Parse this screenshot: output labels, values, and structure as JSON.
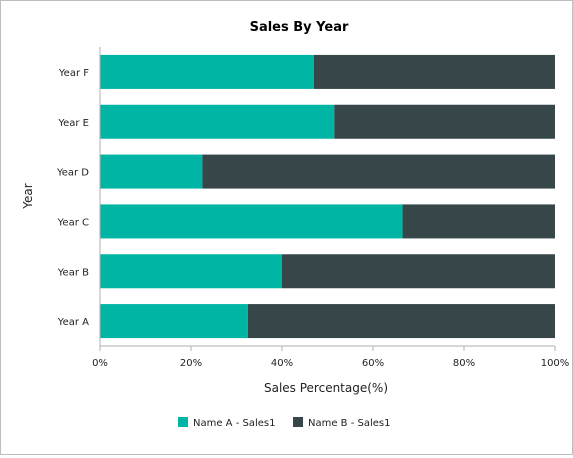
{
  "chart_data": {
    "type": "bar",
    "orientation": "horizontal",
    "stacked": "percent",
    "title": "Sales By Year",
    "xlabel": "Sales Percentage(%)",
    "ylabel": "Year",
    "categories": [
      "Year A",
      "Year B",
      "Year C",
      "Year D",
      "Year E",
      "Year F"
    ],
    "series": [
      {
        "name": "Name A - Sales1",
        "color": "#00b5a4",
        "values": [
          32.5,
          40,
          66.5,
          22.5,
          51.5,
          47
        ]
      },
      {
        "name": "Name B - Sales1",
        "color": "#374649",
        "values": [
          67.5,
          60,
          33.5,
          77.5,
          48.5,
          53
        ]
      }
    ],
    "x_ticks": [
      "0%",
      "20%",
      "40%",
      "60%",
      "80%",
      "100%"
    ],
    "xlim": [
      0,
      100
    ],
    "grid": false,
    "legend_position": "bottom"
  }
}
